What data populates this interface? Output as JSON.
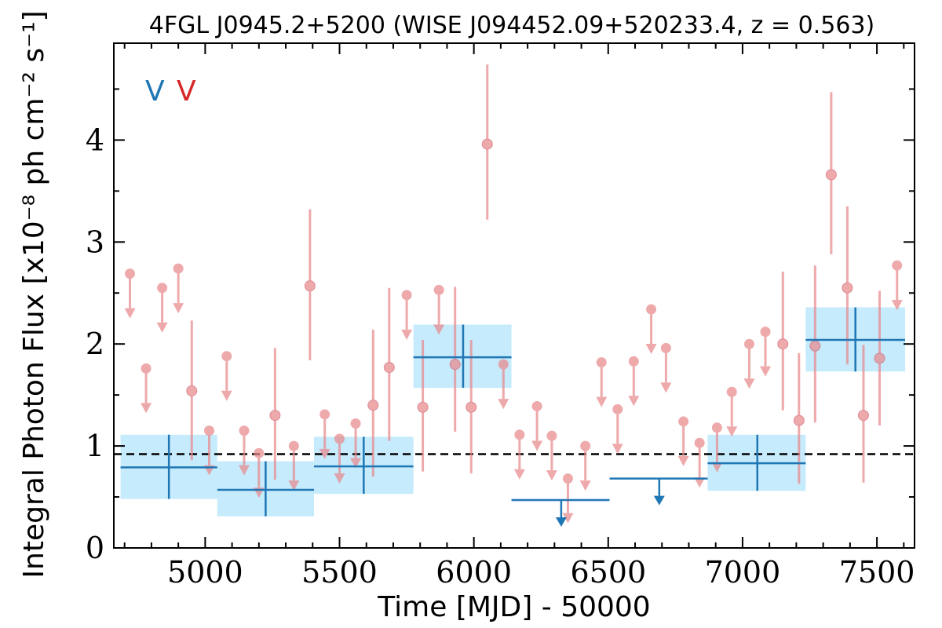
{
  "chart_data": {
    "type": "scatter",
    "title": "4FGL J0945.2+5200 (WISE J094452.09+520233.4, z = 0.563)",
    "xlabel": "Time [MJD] - 50000",
    "ylabel": "Integral Photon Flux [x10⁻⁸ ph cm⁻² s⁻¹]",
    "xlim": [
      4660,
      7640
    ],
    "ylim": [
      0,
      4.95
    ],
    "xticks": [
      "5000",
      "5500",
      "6000",
      "6500",
      "7000",
      "7500"
    ],
    "yticks": [
      "0",
      "1",
      "2",
      "3",
      "4"
    ],
    "variability_flags": [
      {
        "text": "V",
        "color": "#1f77b4"
      },
      {
        "text": "V",
        "color": "#d62728"
      }
    ],
    "mean_flux": 0.92,
    "colors": {
      "short_bins": "#e8888c",
      "long_bins": "#1f77b4",
      "long_box": "#c6ebfc",
      "mean_line": "#000000"
    },
    "series": [
      {
        "name": "",
        "detections": [
          {
            "x": 4950,
            "y": 1.54,
            "lo": 0.86,
            "hi": 2.23
          },
          {
            "x": 5260,
            "y": 1.3,
            "lo": 0.67,
            "hi": 1.96
          },
          {
            "x": 5390,
            "y": 2.57,
            "lo": 1.84,
            "hi": 3.32
          },
          {
            "x": 5625,
            "y": 1.4,
            "lo": 0.7,
            "hi": 2.14
          },
          {
            "x": 5685,
            "y": 1.77,
            "lo": 1.05,
            "hi": 2.55
          },
          {
            "x": 5810,
            "y": 1.38,
            "lo": 0.75,
            "hi": 2.04
          },
          {
            "x": 5930,
            "y": 1.8,
            "lo": 1.14,
            "hi": 2.56
          },
          {
            "x": 5990,
            "y": 1.38,
            "lo": 0.73,
            "hi": 2.04
          },
          {
            "x": 6050,
            "y": 3.96,
            "lo": 3.22,
            "hi": 4.74
          },
          {
            "x": 7150,
            "y": 2.0,
            "lo": 1.35,
            "hi": 2.71
          },
          {
            "x": 7210,
            "y": 1.25,
            "lo": 0.63,
            "hi": 1.91
          },
          {
            "x": 7270,
            "y": 1.98,
            "lo": 1.23,
            "hi": 2.77
          },
          {
            "x": 7330,
            "y": 3.66,
            "lo": 2.88,
            "hi": 4.47
          },
          {
            "x": 7390,
            "y": 2.55,
            "lo": 1.8,
            "hi": 3.35
          },
          {
            "x": 7450,
            "y": 1.3,
            "lo": 0.64,
            "hi": 1.99
          },
          {
            "x": 7510,
            "y": 1.86,
            "lo": 1.2,
            "hi": 2.52
          }
        ],
        "upper_limits": [
          {
            "x": 4720,
            "y": 2.69
          },
          {
            "x": 4780,
            "y": 1.76
          },
          {
            "x": 4840,
            "y": 2.55
          },
          {
            "x": 4900,
            "y": 2.74
          },
          {
            "x": 5015,
            "y": 1.15
          },
          {
            "x": 5080,
            "y": 1.88
          },
          {
            "x": 5145,
            "y": 1.15
          },
          {
            "x": 5200,
            "y": 0.93
          },
          {
            "x": 5330,
            "y": 1.0
          },
          {
            "x": 5445,
            "y": 1.31
          },
          {
            "x": 5500,
            "y": 1.07
          },
          {
            "x": 5560,
            "y": 1.22
          },
          {
            "x": 5750,
            "y": 2.48
          },
          {
            "x": 5870,
            "y": 2.53
          },
          {
            "x": 6110,
            "y": 1.8
          },
          {
            "x": 6170,
            "y": 1.11
          },
          {
            "x": 6235,
            "y": 1.39
          },
          {
            "x": 6290,
            "y": 1.1
          },
          {
            "x": 6350,
            "y": 0.68
          },
          {
            "x": 6415,
            "y": 1.0
          },
          {
            "x": 6475,
            "y": 1.82
          },
          {
            "x": 6535,
            "y": 1.36
          },
          {
            "x": 6595,
            "y": 1.83
          },
          {
            "x": 6660,
            "y": 2.34
          },
          {
            "x": 6715,
            "y": 1.96
          },
          {
            "x": 6780,
            "y": 1.24
          },
          {
            "x": 6840,
            "y": 1.03
          },
          {
            "x": 6905,
            "y": 1.18
          },
          {
            "x": 6960,
            "y": 1.53
          },
          {
            "x": 7025,
            "y": 2.0
          },
          {
            "x": 7085,
            "y": 2.12
          },
          {
            "x": 7575,
            "y": 2.77
          }
        ]
      },
      {
        "name": "",
        "detections": [
          {
            "x": 4865,
            "xlo": 4685,
            "xhi": 5045,
            "y": 0.79,
            "lo": 0.48,
            "hi": 1.11
          },
          {
            "x": 5225,
            "xlo": 5045,
            "xhi": 5405,
            "y": 0.57,
            "lo": 0.31,
            "hi": 0.85
          },
          {
            "x": 5590,
            "xlo": 5405,
            "xhi": 5775,
            "y": 0.8,
            "lo": 0.53,
            "hi": 1.09
          },
          {
            "x": 5960,
            "xlo": 5775,
            "xhi": 6140,
            "y": 1.87,
            "lo": 1.57,
            "hi": 2.19
          },
          {
            "x": 7055,
            "xlo": 6870,
            "xhi": 7235,
            "y": 0.83,
            "lo": 0.56,
            "hi": 1.11
          },
          {
            "x": 7420,
            "xlo": 7235,
            "xhi": 7605,
            "y": 2.04,
            "lo": 1.73,
            "hi": 2.36
          }
        ],
        "upper_limits": [
          {
            "x": 6325,
            "xlo": 6140,
            "xhi": 6505,
            "y": 0.47
          },
          {
            "x": 6690,
            "xlo": 6505,
            "xhi": 6870,
            "y": 0.68
          }
        ]
      }
    ]
  }
}
